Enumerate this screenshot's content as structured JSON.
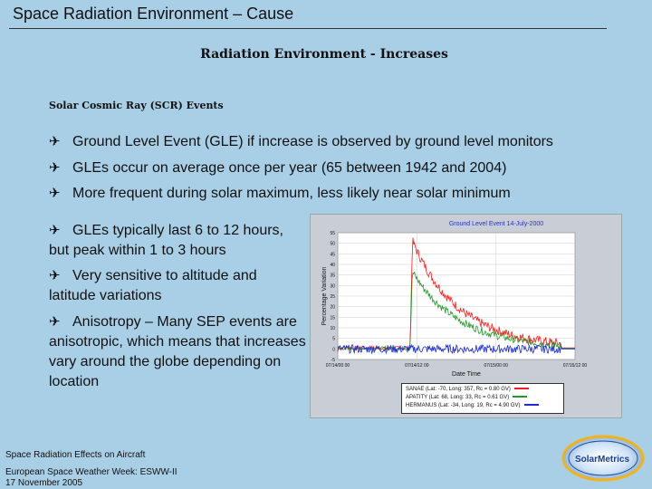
{
  "header": {
    "title": "Space Radiation Environment – Cause",
    "subtitle": "Radiation Environment - Increases"
  },
  "section_heading": "Solar Cosmic Ray (SCR) Events",
  "bullets": [
    {
      "text": "Ground Level Event (GLE) if increase is observed by ground level monitors"
    },
    {
      "text": "GLEs occur on average once per year (65 between 1942 and 2004)"
    },
    {
      "text": "More frequent during solar maximum, less likely near solar minimum"
    },
    {
      "text": "GLEs typically last 6 to 12 hours, but peak within 1 to 3 hours"
    },
    {
      "text": "Very sensitive to altitude and latitude variations"
    },
    {
      "text": "Anisotropy – Many SEP events are anisotropic, which means that increases vary around the globe depending on location"
    }
  ],
  "bullet_glyph": "✈",
  "footer": {
    "line1": "Space Radiation Effects on Aircraft",
    "line2": "European Space Weather Week: ESWW-II",
    "line3": "17 November 2005"
  },
  "logo_text": "SolarMetrics",
  "chart_data": {
    "type": "line",
    "title": "Ground Level Event 14-July-2000",
    "xlabel": "Date Time",
    "ylabel": "Percentage Variation",
    "ylim": [
      -5,
      55
    ],
    "yticks": [
      55,
      50,
      45,
      40,
      35,
      30,
      25,
      20,
      15,
      10,
      5,
      0,
      -5
    ],
    "xticks": [
      "07/14/00 00",
      "07/14/12 00",
      "07/15/00 00",
      "07/15/12 00"
    ],
    "series": [
      {
        "name": "SANAE    (Lat: -70, Long: 357, Rc = 0.80 GV)",
        "color": "#ff1a1a",
        "peak": 53,
        "baseline": 0.5
      },
      {
        "name": "APATITY  (Lat: 68, Long: 33, Rc = 0.61 GV)",
        "color": "#1f9a2a",
        "peak": 38,
        "baseline": 0.3
      },
      {
        "name": "HERMANUS (Lat: -34, Long: 19, Rc = 4.90 GV)",
        "color": "#1a2ad8",
        "peak": 1,
        "baseline": 0
      }
    ],
    "grid": true
  }
}
